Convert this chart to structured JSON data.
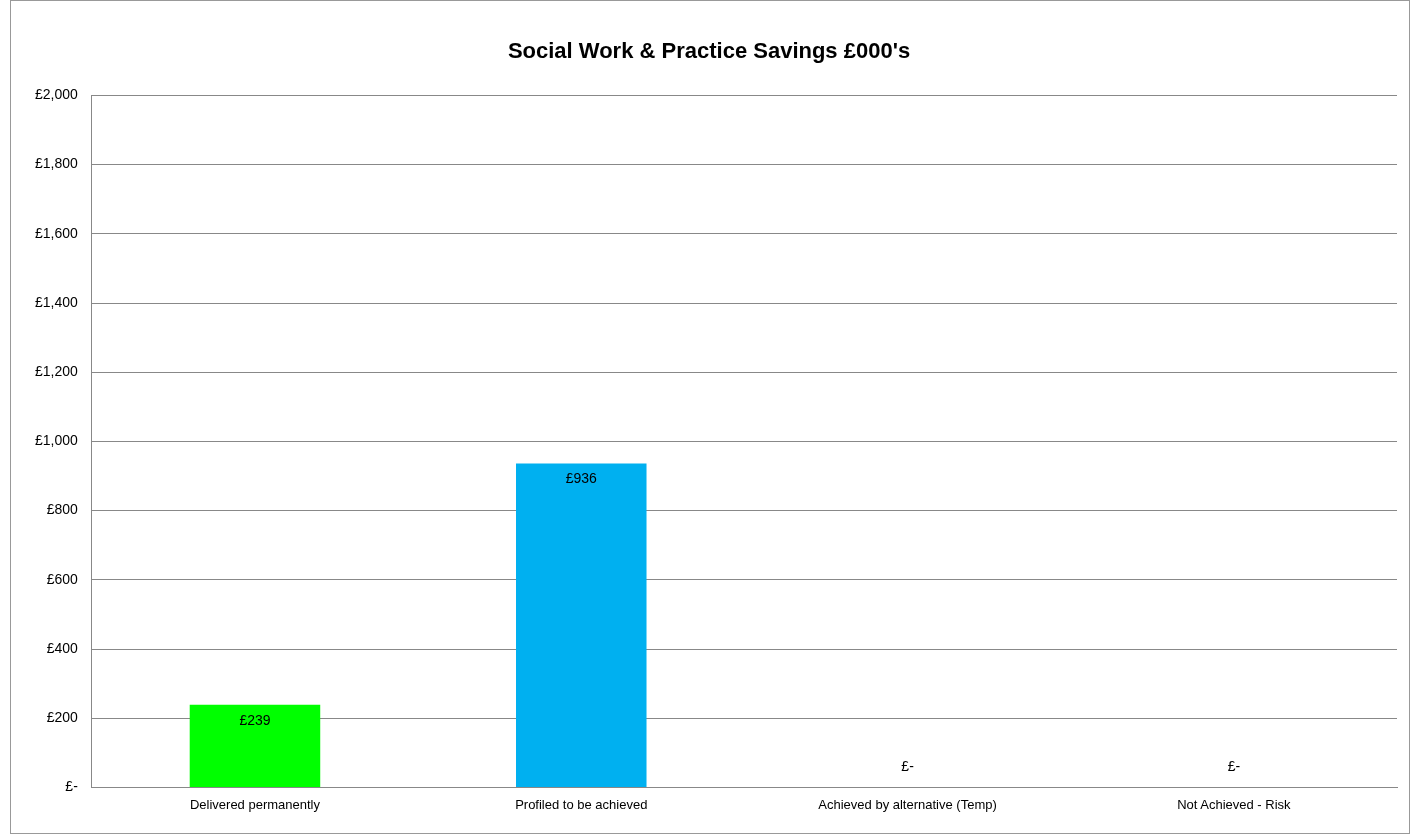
{
  "chart_data": {
    "type": "bar",
    "title": "Social Work & Practice Savings £000's",
    "categories": [
      "Delivered permanently",
      "Profiled to be achieved",
      "Achieved by alternative (Temp)",
      "Not Achieved - Risk"
    ],
    "values": [
      239,
      936,
      0,
      0
    ],
    "colors": [
      "#00ff00",
      "#00b0f0",
      "#00b0f0",
      "#00b0f0"
    ],
    "value_labels": [
      "£239",
      "£936",
      "£-",
      "£-"
    ],
    "ylim": [
      0,
      2000
    ],
    "yticks": [
      {
        "value": 0,
        "label": "£-"
      },
      {
        "value": 200,
        "label": "£200"
      },
      {
        "value": 400,
        "label": "£400"
      },
      {
        "value": 600,
        "label": "£600"
      },
      {
        "value": 800,
        "label": "£800"
      },
      {
        "value": 1000,
        "label": "£1,000"
      },
      {
        "value": 1200,
        "label": "£1,200"
      },
      {
        "value": 1400,
        "label": "£1,400"
      },
      {
        "value": 1600,
        "label": "£1,600"
      },
      {
        "value": 1800,
        "label": "£1,800"
      },
      {
        "value": 2000,
        "label": "£2,000"
      }
    ],
    "grid": "y",
    "legend": false
  }
}
